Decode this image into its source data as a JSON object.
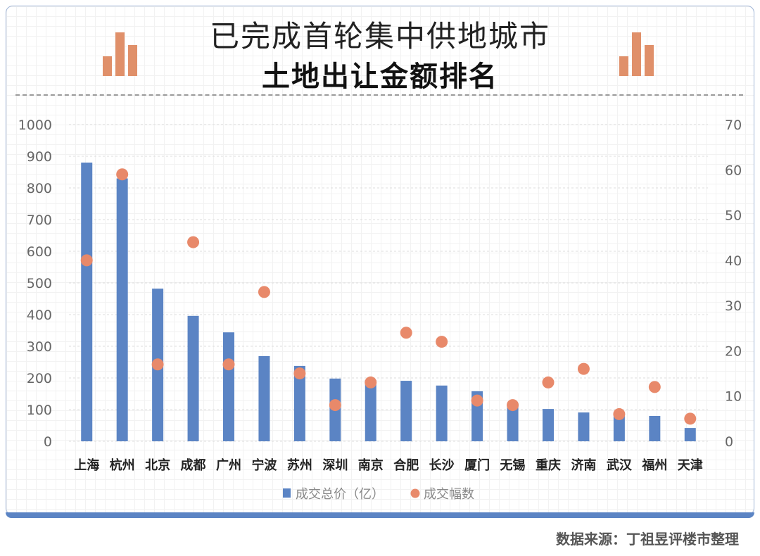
{
  "title_line1": "已完成首轮集中供地城市",
  "title_line2": "土地出让金额排名",
  "source": "数据来源：丁祖昱评楼市整理",
  "icons": {
    "decor": "bar-chart-icon"
  },
  "colors": {
    "bar": "#5b84c4",
    "dot": "#e8896a",
    "decor": "#e0906a"
  },
  "chart_data": {
    "type": "bar",
    "categories": [
      "上海",
      "杭州",
      "北京",
      "成都",
      "广州",
      "宁波",
      "苏州",
      "深圳",
      "南京",
      "合肥",
      "长沙",
      "厦门",
      "无锡",
      "重庆",
      "济南",
      "武汉",
      "福州",
      "天津"
    ],
    "series": [
      {
        "name": "成交总价（亿）",
        "type": "bar",
        "axis": "left",
        "values": [
          880,
          830,
          482,
          396,
          344,
          269,
          238,
          198,
          193,
          191,
          176,
          158,
          120,
          102,
          91,
          89,
          80,
          42
        ]
      },
      {
        "name": "成交幅数",
        "type": "scatter",
        "axis": "right",
        "values": [
          40,
          59,
          17,
          44,
          17,
          33,
          15,
          8,
          13,
          24,
          22,
          9,
          8,
          13,
          16,
          6,
          12,
          5
        ]
      }
    ],
    "ylim": [
      0,
      1000
    ],
    "yticks": [
      0,
      100,
      200,
      300,
      400,
      500,
      600,
      700,
      800,
      900,
      1000
    ],
    "y2lim": [
      0,
      70
    ],
    "y2ticks": [
      0,
      10,
      20,
      30,
      40,
      50,
      60,
      70
    ],
    "grid": true,
    "legend": "bottom"
  }
}
